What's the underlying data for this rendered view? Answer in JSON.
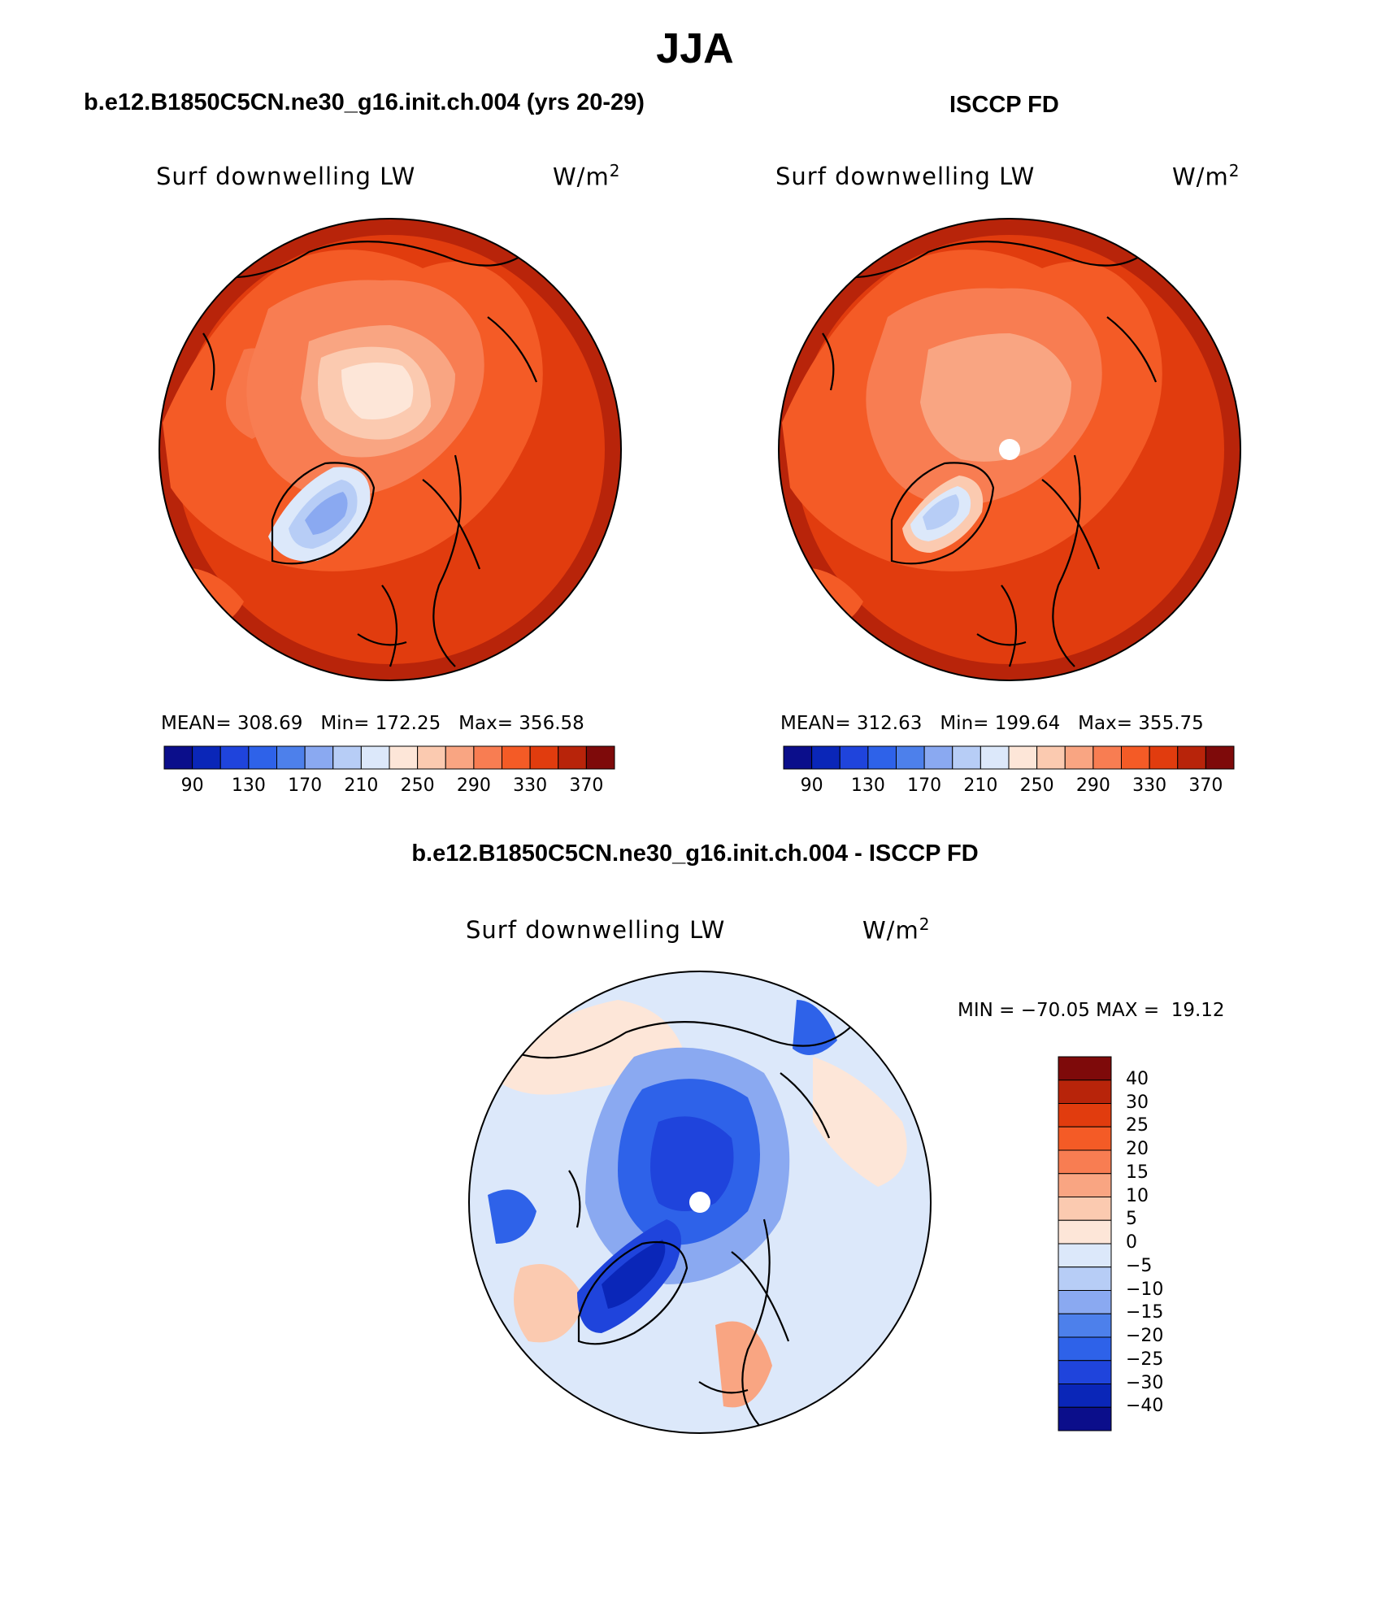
{
  "title": "JJA",
  "variable": "Surf downwelling LW",
  "units": "W/m",
  "units_exp": "2",
  "panels": [
    {
      "title": "b.e12.B1850C5CN.ne30_g16.init.ch.004 (yrs 20-29)",
      "mean_label": "MEAN=",
      "mean": "308.69",
      "min_label": "Min=",
      "min": "172.25",
      "max_label": "Max=",
      "max": "356.58"
    },
    {
      "title": "ISCCP FD",
      "mean_label": "MEAN=",
      "mean": "312.63",
      "min_label": "Min=",
      "min": "199.64",
      "max_label": "Max=",
      "max": "355.75"
    }
  ],
  "diff": {
    "title": "b.e12.B1850C5CN.ne30_g16.init.ch.004 - ISCCP FD",
    "min_label": "MIN =",
    "min": "−70.05",
    "max_label": "MAX =",
    "max": "19.12"
  },
  "field_colorbar": {
    "colors": [
      "#0b0e8b",
      "#0a26b8",
      "#1f44dc",
      "#2e62e9",
      "#4d80eb",
      "#8aa9f1",
      "#b7cdf6",
      "#dce8fa",
      "#fde6d8",
      "#fbcab0",
      "#f9a582",
      "#f87d52",
      "#f45b26",
      "#e13c0e",
      "#b8240a",
      "#7e0a0a"
    ],
    "ticks": [
      "90",
      "130",
      "170",
      "210",
      "250",
      "290",
      "330",
      "370"
    ]
  },
  "diff_colorbar": {
    "colors": [
      "#7e0a0a",
      "#b8240a",
      "#e13c0e",
      "#f45b26",
      "#f87d52",
      "#f9a582",
      "#fbcab0",
      "#fde6d8",
      "#dce8fa",
      "#b7cdf6",
      "#8aa9f1",
      "#4d80eb",
      "#2e62e9",
      "#1f44dc",
      "#0a26b8",
      "#0b0e8b"
    ],
    "ticks": [
      "40",
      "30",
      "25",
      "20",
      "15",
      "10",
      "5",
      "0",
      "−5",
      "−10",
      "−15",
      "−20",
      "−25",
      "−30",
      "−40"
    ]
  }
}
